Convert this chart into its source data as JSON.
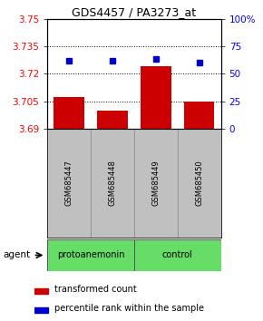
{
  "title": "GDS4457 / PA3273_at",
  "samples": [
    "GSM685447",
    "GSM685448",
    "GSM685449",
    "GSM685450"
  ],
  "bar_values": [
    3.707,
    3.7,
    3.724,
    3.705
  ],
  "percentile_values": [
    3.727,
    3.727,
    3.728,
    3.726
  ],
  "ymin": 3.69,
  "ymax": 3.75,
  "yticks_left": [
    3.69,
    3.705,
    3.72,
    3.735,
    3.75
  ],
  "yticks_right": [
    0,
    25,
    50,
    75,
    100
  ],
  "group1_label": "protoanemonin",
  "group2_label": "control",
  "group_color": "#66DD66",
  "bar_color": "#cc0000",
  "dot_color": "#0000cc",
  "sample_bg_color": "#c0c0c0",
  "agent_label": "agent",
  "legend_bar_label": "transformed count",
  "legend_dot_label": "percentile rank within the sample",
  "bar_width": 0.7
}
